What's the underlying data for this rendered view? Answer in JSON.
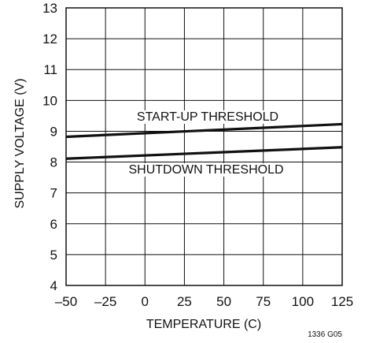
{
  "chart_data": {
    "type": "line",
    "xlabel": "TEMPERATURE (C)",
    "ylabel": "SUPPLY VOLTAGE (V)",
    "xlim": [
      -50,
      125
    ],
    "ylim": [
      4,
      13
    ],
    "xticks": [
      -50,
      -25,
      0,
      25,
      50,
      75,
      100,
      125
    ],
    "yticks": [
      4,
      5,
      6,
      7,
      8,
      9,
      10,
      11,
      12,
      13
    ],
    "xtick_labels": [
      "–50",
      "–25",
      "0",
      "25",
      "50",
      "75",
      "100",
      "125"
    ],
    "ytick_labels": [
      "4",
      "5",
      "6",
      "7",
      "8",
      "9",
      "10",
      "11",
      "12",
      "13"
    ],
    "grid": true,
    "legend": "none",
    "series": [
      {
        "name": "START-UP THRESHOLD",
        "x": [
          -50,
          125
        ],
        "y": [
          8.82,
          9.23
        ]
      },
      {
        "name": "SHUTDOWN THRESHOLD",
        "x": [
          -50,
          125
        ],
        "y": [
          8.11,
          8.48
        ]
      }
    ],
    "figure_id": "1336 G05"
  }
}
